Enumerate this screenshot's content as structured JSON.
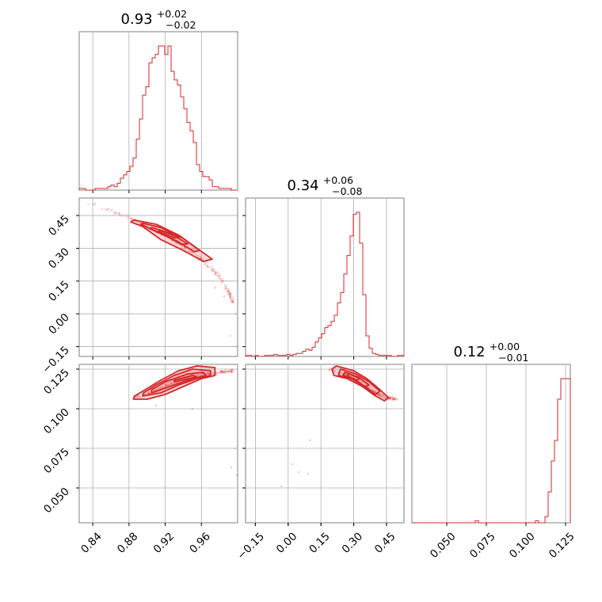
{
  "chart_data": {
    "type": "corner",
    "color": "#d62728",
    "parameters": [
      {
        "title_value": "0.93",
        "err_plus": "+0.02",
        "err_minus": "−0.02",
        "range": [
          0.825,
          1.0
        ],
        "ticks": [
          0.84,
          0.88,
          0.92,
          0.96
        ],
        "tick_labels": [
          "0.84",
          "0.88",
          "0.92",
          "0.96"
        ]
      },
      {
        "title_value": "0.34",
        "err_plus": "+0.06",
        "err_minus": "−0.08",
        "range": [
          -0.195,
          0.53
        ],
        "ticks": [
          -0.15,
          0.0,
          0.15,
          0.3,
          0.45
        ],
        "tick_labels": [
          "−0.15",
          "0.00",
          "0.15",
          "0.30",
          "0.45"
        ]
      },
      {
        "title_value": "0.12",
        "err_plus": "+0.00",
        "err_minus": "−0.01",
        "range": [
          0.028,
          0.128
        ],
        "ticks": [
          0.05,
          0.075,
          0.1,
          0.125
        ],
        "tick_labels": [
          "0.050",
          "0.075",
          "0.100",
          "0.125"
        ]
      }
    ],
    "histograms": [
      {
        "param": 0,
        "x_start": 0.825,
        "bin_width": 0.0035,
        "counts": [
          1,
          1,
          0,
          0,
          0,
          1,
          1,
          1,
          1,
          2,
          3,
          2,
          4,
          7,
          9,
          11,
          14,
          19,
          30,
          42,
          56,
          61,
          75,
          78,
          80,
          85,
          85,
          80,
          85,
          70,
          65,
          62,
          55,
          48,
          40,
          35,
          28,
          15,
          11,
          8,
          8,
          6,
          2,
          2,
          1,
          1,
          1,
          1,
          0,
          0
        ]
      },
      {
        "param": 1,
        "x_start": -0.195,
        "bin_width": 0.0145,
        "counts": [
          1,
          1,
          0,
          1,
          0,
          0,
          1,
          1,
          1,
          2,
          1,
          1,
          1,
          2,
          1,
          2,
          3,
          3,
          5,
          7,
          6,
          9,
          14,
          18,
          22,
          28,
          30,
          34,
          40,
          52,
          62,
          80,
          98,
          117,
          138,
          140,
          110,
          60,
          20,
          8,
          3,
          2,
          1,
          1,
          1,
          1,
          0,
          0,
          1,
          1
        ]
      },
      {
        "param": 2,
        "x_start": 0.028,
        "bin_width": 0.002,
        "counts": [
          0,
          0,
          0,
          0,
          0,
          0,
          0,
          0,
          0,
          0,
          0,
          0,
          0,
          0,
          0,
          0,
          0,
          0,
          0,
          0,
          1,
          0,
          0,
          0,
          0,
          0,
          0,
          0,
          0,
          0,
          0,
          0,
          0,
          0,
          0,
          0,
          0,
          0,
          0,
          1,
          0,
          0,
          3,
          15,
          30,
          40,
          60,
          70,
          70,
          70
        ]
      }
    ],
    "panels_2d": [
      {
        "x_param": 0,
        "y_param": 1,
        "ridge": [
          [
            0.835,
            0.51
          ],
          [
            0.86,
            0.47
          ],
          [
            0.88,
            0.44
          ],
          [
            0.9,
            0.4
          ],
          [
            0.92,
            0.36
          ],
          [
            0.94,
            0.31
          ],
          [
            0.96,
            0.25
          ],
          [
            0.98,
            0.17
          ],
          [
            0.99,
            0.1
          ],
          [
            0.995,
            0.05
          ]
        ],
        "contours": [
          [
            [
              0.885,
              0.43
            ],
            [
              0.91,
              0.41
            ],
            [
              0.935,
              0.36
            ],
            [
              0.955,
              0.3
            ],
            [
              0.972,
              0.25
            ],
            [
              0.962,
              0.24
            ],
            [
              0.94,
              0.29
            ],
            [
              0.915,
              0.34
            ],
            [
              0.895,
              0.4
            ],
            [
              0.882,
              0.42
            ]
          ],
          [
            [
              0.895,
              0.415
            ],
            [
              0.915,
              0.395
            ],
            [
              0.94,
              0.345
            ],
            [
              0.958,
              0.29
            ],
            [
              0.952,
              0.285
            ],
            [
              0.932,
              0.335
            ],
            [
              0.908,
              0.38
            ],
            [
              0.893,
              0.41
            ]
          ],
          [
            [
              0.905,
              0.395
            ],
            [
              0.925,
              0.37
            ],
            [
              0.945,
              0.32
            ],
            [
              0.938,
              0.318
            ],
            [
              0.918,
              0.362
            ],
            [
              0.903,
              0.39
            ]
          ],
          [
            [
              0.915,
              0.38
            ],
            [
              0.935,
              0.35
            ],
            [
              0.93,
              0.348
            ],
            [
              0.912,
              0.377
            ]
          ]
        ],
        "outliers": [
          [
            0.998,
            0.0
          ],
          [
            0.992,
            -0.1
          ],
          [
            0.999,
            -0.15
          ],
          [
            0.985,
            0.08
          ],
          [
            0.975,
            0.12
          ]
        ]
      },
      {
        "x_param": 0,
        "y_param": 2,
        "ridge": [
          [
            0.885,
            0.107
          ],
          [
            0.9,
            0.109
          ],
          [
            0.92,
            0.114
          ],
          [
            0.94,
            0.119
          ],
          [
            0.96,
            0.122
          ],
          [
            0.98,
            0.123
          ],
          [
            0.995,
            0.124
          ]
        ],
        "contours": [
          [
            [
              0.885,
              0.106
            ],
            [
              0.9,
              0.106
            ],
            [
              0.92,
              0.109
            ],
            [
              0.94,
              0.114
            ],
            [
              0.96,
              0.119
            ],
            [
              0.975,
              0.121
            ],
            [
              0.975,
              0.126
            ],
            [
              0.955,
              0.127
            ],
            [
              0.935,
              0.124
            ],
            [
              0.915,
              0.118
            ],
            [
              0.895,
              0.111
            ],
            [
              0.886,
              0.108
            ]
          ],
          [
            [
              0.895,
              0.108
            ],
            [
              0.915,
              0.11
            ],
            [
              0.935,
              0.115
            ],
            [
              0.955,
              0.119
            ],
            [
              0.97,
              0.121
            ],
            [
              0.97,
              0.124
            ],
            [
              0.95,
              0.125
            ],
            [
              0.93,
              0.121
            ],
            [
              0.91,
              0.115
            ],
            [
              0.896,
              0.11
            ]
          ],
          [
            [
              0.905,
              0.11
            ],
            [
              0.93,
              0.115
            ],
            [
              0.95,
              0.119
            ],
            [
              0.965,
              0.121
            ],
            [
              0.962,
              0.123
            ],
            [
              0.945,
              0.122
            ],
            [
              0.92,
              0.117
            ],
            [
              0.905,
              0.112
            ]
          ],
          [
            [
              0.93,
              0.117
            ],
            [
              0.955,
              0.12
            ],
            [
              0.95,
              0.121
            ],
            [
              0.93,
              0.118
            ]
          ]
        ],
        "outliers": [
          [
            0.997,
            0.075
          ],
          [
            0.999,
            0.058
          ],
          [
            0.993,
            0.063
          ],
          [
            0.95,
            0.1
          ],
          [
            0.91,
            0.102
          ]
        ]
      },
      {
        "x_param": 1,
        "y_param": 2,
        "ridge": [
          [
            0.18,
            0.125
          ],
          [
            0.25,
            0.122
          ],
          [
            0.3,
            0.118
          ],
          [
            0.35,
            0.114
          ],
          [
            0.4,
            0.11
          ],
          [
            0.45,
            0.107
          ],
          [
            0.5,
            0.106
          ]
        ],
        "contours": [
          [
            [
              0.22,
              0.127
            ],
            [
              0.3,
              0.124
            ],
            [
              0.36,
              0.119
            ],
            [
              0.42,
              0.112
            ],
            [
              0.46,
              0.107
            ],
            [
              0.44,
              0.105
            ],
            [
              0.4,
              0.108
            ],
            [
              0.34,
              0.114
            ],
            [
              0.27,
              0.119
            ],
            [
              0.21,
              0.121
            ],
            [
              0.2,
              0.125
            ]
          ],
          [
            [
              0.24,
              0.125
            ],
            [
              0.31,
              0.122
            ],
            [
              0.37,
              0.117
            ],
            [
              0.42,
              0.111
            ],
            [
              0.4,
              0.109
            ],
            [
              0.35,
              0.114
            ],
            [
              0.29,
              0.119
            ],
            [
              0.23,
              0.121
            ]
          ],
          [
            [
              0.26,
              0.123
            ],
            [
              0.32,
              0.12
            ],
            [
              0.37,
              0.115
            ],
            [
              0.35,
              0.114
            ],
            [
              0.3,
              0.119
            ],
            [
              0.25,
              0.121
            ]
          ],
          [
            [
              0.28,
              0.122
            ],
            [
              0.33,
              0.119
            ],
            [
              0.31,
              0.118
            ],
            [
              0.27,
              0.121
            ]
          ]
        ],
        "outliers": [
          [
            -0.03,
            0.051
          ],
          [
            0.05,
            0.06
          ],
          [
            0.02,
            0.065
          ],
          [
            0.09,
            0.059
          ],
          [
            0.1,
            0.08
          ]
        ]
      }
    ]
  }
}
